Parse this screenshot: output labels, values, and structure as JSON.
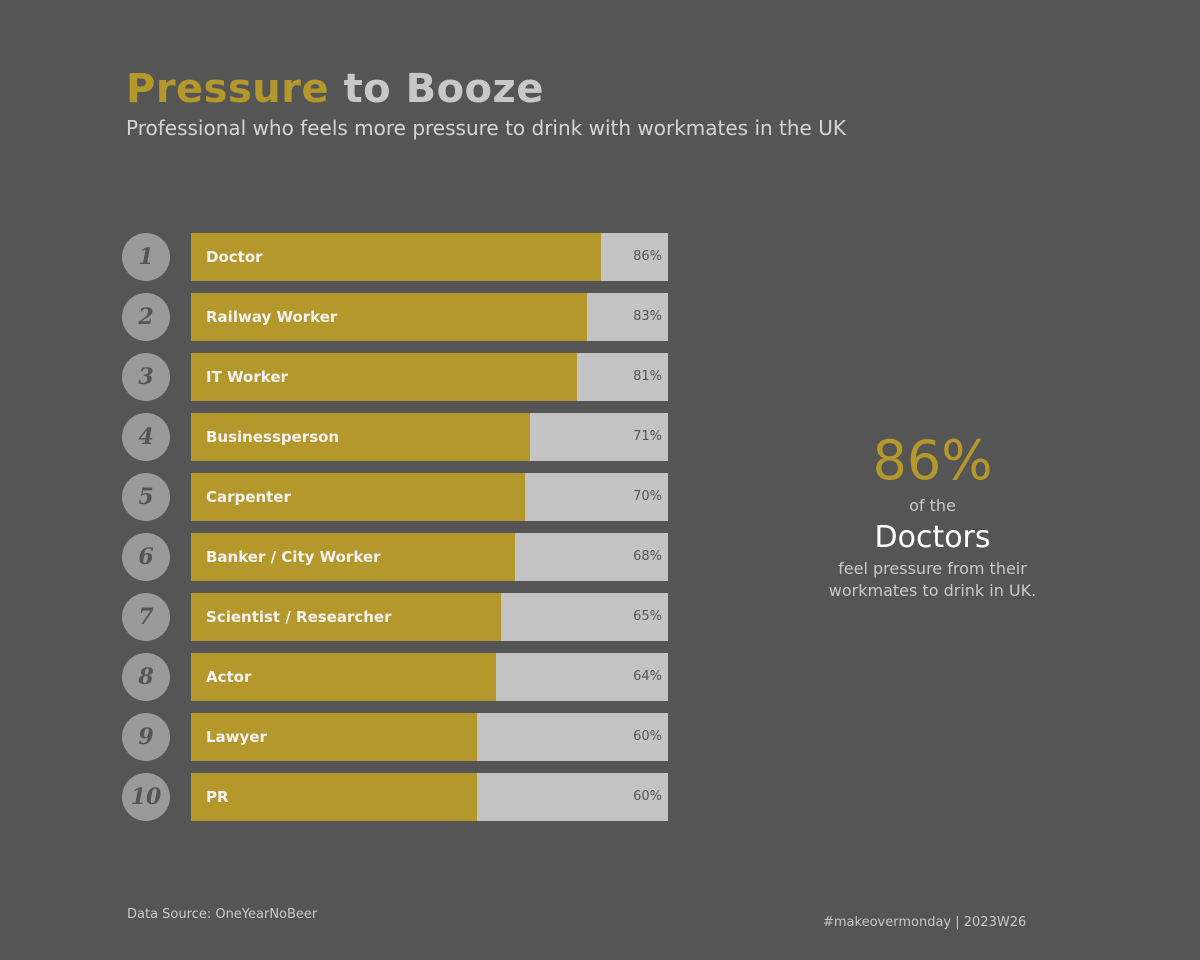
{
  "header": {
    "title_highlight": "Pressure",
    "title_rest": "to Booze",
    "subtitle": "Professional who feels more pressure to drink with workmates in the UK"
  },
  "chart_data": {
    "type": "bar",
    "orientation": "horizontal",
    "ranks": [
      1,
      2,
      3,
      4,
      5,
      6,
      7,
      8,
      9,
      10
    ],
    "categories": [
      "Doctor",
      "Railway Worker",
      "IT Worker",
      "Businessperson",
      "Carpenter",
      "Banker / City Worker",
      "Scientist / Researcher",
      "Actor",
      "Lawyer",
      "PR"
    ],
    "values": [
      86,
      83,
      81,
      71,
      70,
      68,
      65,
      64,
      60,
      60
    ],
    "value_labels": [
      "86%",
      "83%",
      "81%",
      "71%",
      "70%",
      "68%",
      "65%",
      "64%",
      "60%",
      "60%"
    ],
    "xlim": [
      0,
      100
    ],
    "unit": "%",
    "colors": {
      "fill": "#b5982b",
      "track": "#c4c4c4",
      "rank_badge": "#9a9a9a"
    }
  },
  "callout": {
    "value": "86%",
    "line1": "of the",
    "subject": "Doctors",
    "line2": "feel pressure from their workmates to drink in UK."
  },
  "footer": {
    "source": "Data Source: OneYearNoBeer",
    "tag": "#makeovermonday | 2023W26"
  }
}
